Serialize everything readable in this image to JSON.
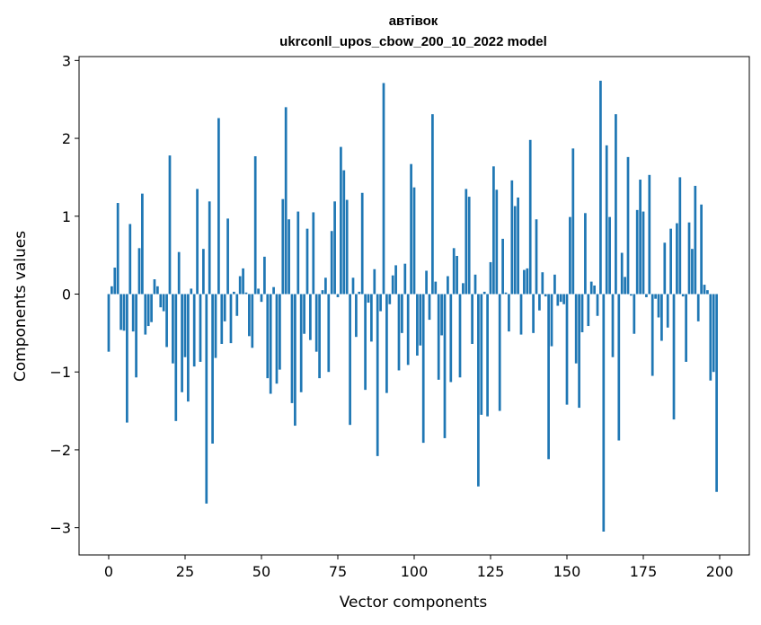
{
  "chart_data": {
    "type": "bar",
    "title": "автівок",
    "subtitle": "ukrconll_upos_cbow_200_10_2022 model",
    "xlabel": "Vector components",
    "ylabel": "Components values",
    "xlim": [
      -9.7,
      209.7
    ],
    "ylim": [
      -3.35,
      3.05
    ],
    "xticks": [
      0,
      25,
      50,
      75,
      100,
      125,
      150,
      175,
      200
    ],
    "yticks": [
      -3,
      -2,
      -1,
      0,
      1,
      2,
      3
    ],
    "xtick_labels": [
      "0",
      "25",
      "50",
      "75",
      "100",
      "125",
      "150",
      "175",
      "200"
    ],
    "ytick_labels": [
      "−3",
      "−2",
      "−1",
      "0",
      "1",
      "2",
      "3"
    ],
    "color": "#1f77b4",
    "grid": false,
    "x": [
      0,
      1,
      2,
      3,
      4,
      5,
      6,
      7,
      8,
      9,
      10,
      11,
      12,
      13,
      14,
      15,
      16,
      17,
      18,
      19,
      20,
      21,
      22,
      23,
      24,
      25,
      26,
      27,
      28,
      29,
      30,
      31,
      32,
      33,
      34,
      35,
      36,
      37,
      38,
      39,
      40,
      41,
      42,
      43,
      44,
      45,
      46,
      47,
      48,
      49,
      50,
      51,
      52,
      53,
      54,
      55,
      56,
      57,
      58,
      59,
      60,
      61,
      62,
      63,
      64,
      65,
      66,
      67,
      68,
      69,
      70,
      71,
      72,
      73,
      74,
      75,
      76,
      77,
      78,
      79,
      80,
      81,
      82,
      83,
      84,
      85,
      86,
      87,
      88,
      89,
      90,
      91,
      92,
      93,
      94,
      95,
      96,
      97,
      98,
      99,
      100,
      101,
      102,
      103,
      104,
      105,
      106,
      107,
      108,
      109,
      110,
      111,
      112,
      113,
      114,
      115,
      116,
      117,
      118,
      119,
      120,
      121,
      122,
      123,
      124,
      125,
      126,
      127,
      128,
      129,
      130,
      131,
      132,
      133,
      134,
      135,
      136,
      137,
      138,
      139,
      140,
      141,
      142,
      143,
      144,
      145,
      146,
      147,
      148,
      149,
      150,
      151,
      152,
      153,
      154,
      155,
      156,
      157,
      158,
      159,
      160,
      161,
      162,
      163,
      164,
      165,
      166,
      167,
      168,
      169,
      170,
      171,
      172,
      173,
      174,
      175,
      176,
      177,
      178,
      179,
      180,
      181,
      182,
      183,
      184,
      185,
      186,
      187,
      188,
      189,
      190,
      191,
      192,
      193,
      194,
      195,
      196,
      197,
      198,
      199
    ],
    "values": [
      -0.74,
      0.1,
      0.34,
      1.17,
      -0.46,
      -0.47,
      -1.65,
      0.9,
      -0.48,
      -1.07,
      0.59,
      1.29,
      -0.52,
      -0.41,
      -0.36,
      0.19,
      0.1,
      -0.17,
      -0.22,
      -0.68,
      1.78,
      -0.89,
      -1.63,
      0.54,
      -1.26,
      -0.81,
      -1.38,
      0.07,
      -0.93,
      1.35,
      -0.87,
      0.58,
      -2.69,
      1.19,
      -1.92,
      -0.82,
      2.26,
      -0.64,
      -0.35,
      0.97,
      -0.63,
      0.03,
      -0.28,
      0.23,
      0.33,
      0.02,
      -0.54,
      -0.69,
      1.77,
      0.07,
      -0.1,
      0.48,
      -1.08,
      -1.28,
      0.09,
      -1.15,
      -0.97,
      1.22,
      2.4,
      0.96,
      -1.4,
      -1.69,
      1.06,
      -1.26,
      -0.51,
      0.84,
      -0.59,
      1.05,
      -0.74,
      -1.08,
      0.05,
      0.21,
      -1.0,
      0.81,
      1.19,
      -0.04,
      1.89,
      1.59,
      1.21,
      -1.68,
      0.21,
      -0.55,
      0.03,
      1.3,
      -1.23,
      -0.11,
      -0.61,
      0.32,
      -2.08,
      -0.22,
      2.71,
      -1.27,
      -0.13,
      0.24,
      0.37,
      -0.98,
      -0.5,
      0.39,
      -0.91,
      1.67,
      1.37,
      -0.79,
      -0.66,
      -1.91,
      0.3,
      -0.33,
      2.31,
      0.16,
      -1.1,
      -0.53,
      -1.85,
      0.23,
      -1.13,
      0.59,
      0.49,
      -1.07,
      0.14,
      1.35,
      1.25,
      -0.64,
      0.25,
      -2.47,
      -1.55,
      0.03,
      -1.57,
      0.41,
      1.64,
      1.34,
      -1.5,
      0.71,
      0.02,
      -0.48,
      1.46,
      1.13,
      1.24,
      -0.52,
      0.31,
      0.33,
      1.98,
      -0.5,
      0.96,
      -0.21,
      0.28,
      -0.03,
      -2.12,
      -0.67,
      0.25,
      -0.15,
      -0.1,
      -0.13,
      -1.42,
      0.99,
      1.87,
      -0.89,
      -1.46,
      -0.49,
      1.04,
      -0.41,
      0.16,
      0.11,
      -0.28,
      2.74,
      -3.05,
      1.91,
      0.99,
      -0.81,
      2.31,
      -1.88,
      0.53,
      0.22,
      1.76,
      -0.02,
      -0.51,
      1.08,
      1.47,
      1.06,
      -0.04,
      1.53,
      -1.05,
      -0.06,
      -0.3,
      -0.6,
      0.66,
      -0.43,
      0.84,
      -1.61,
      0.91,
      1.5,
      -0.03,
      -0.87,
      0.92,
      0.58,
      1.39,
      -0.35,
      1.15,
      0.12,
      0.05,
      -1.11,
      -1.0,
      -2.54
    ]
  }
}
